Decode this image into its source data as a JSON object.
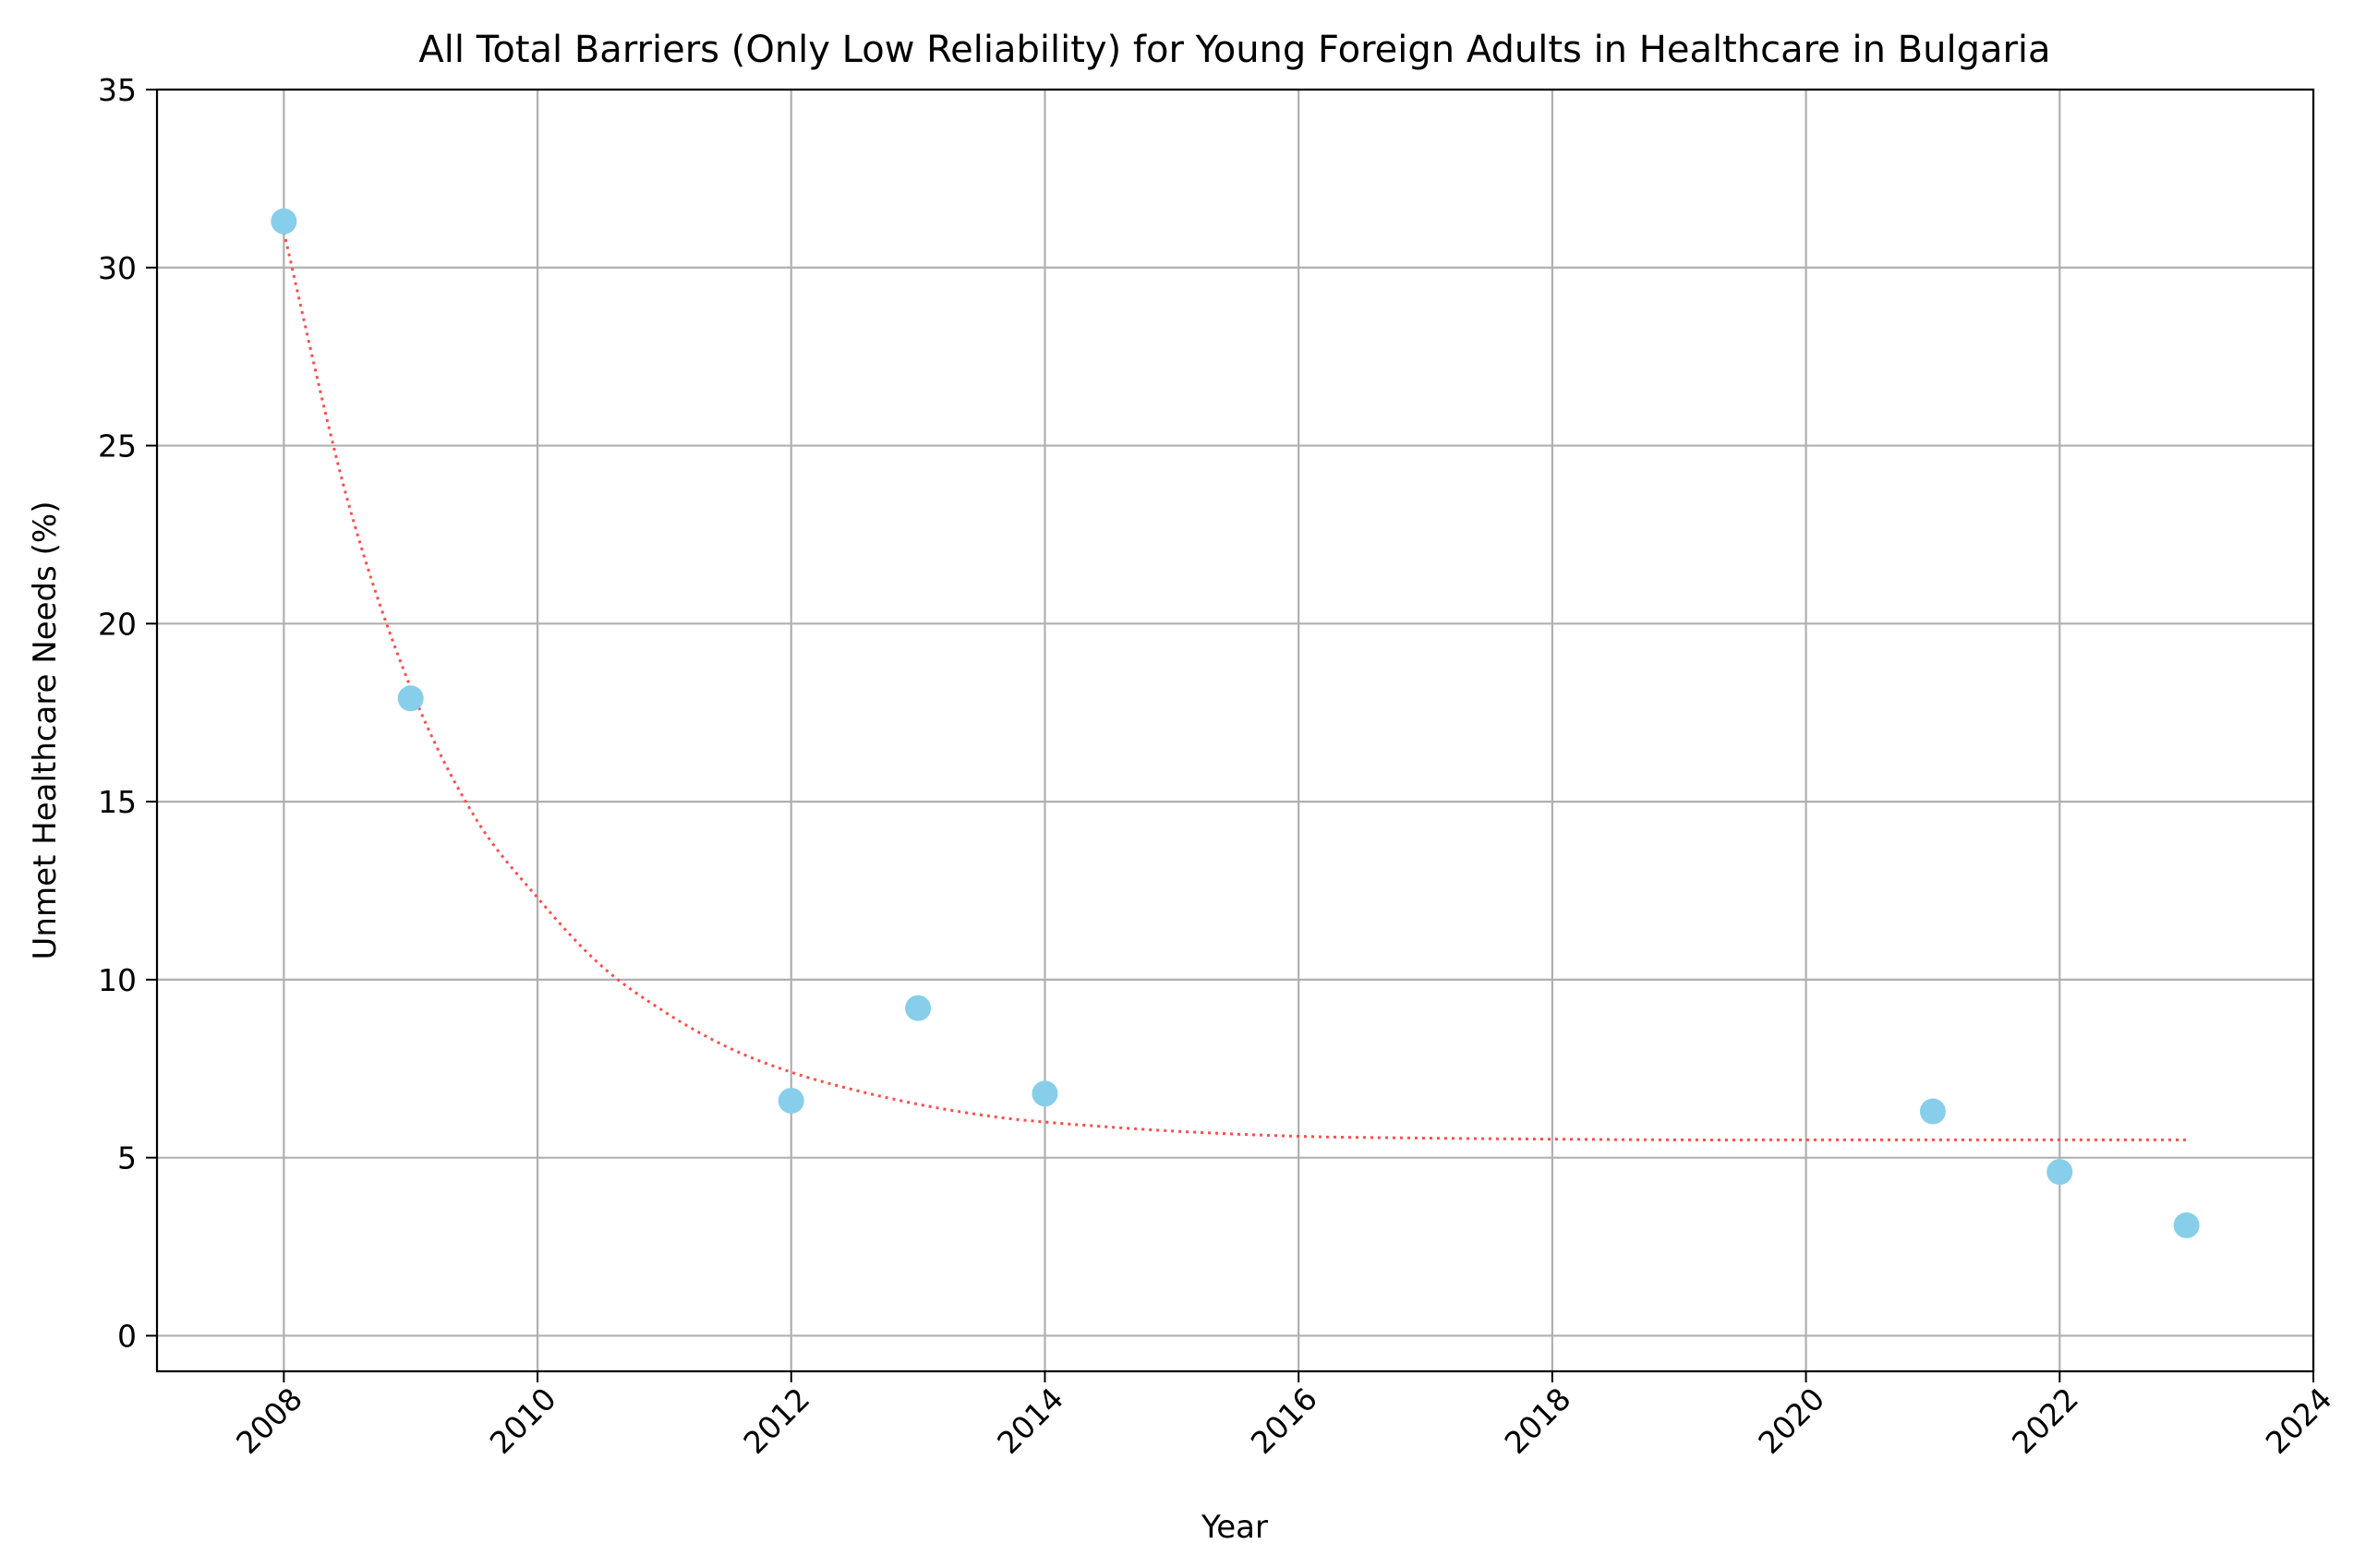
{
  "chart_data": {
    "type": "scatter",
    "title": "All Total Barriers (Only Low Reliability) for Young Foreign Adults in Healthcare in Bulgaria",
    "xlabel": "Year",
    "ylabel": "Unmet Healthcare Needs (%)",
    "xlim": [
      2007,
      2024
    ],
    "ylim": [
      -1,
      35
    ],
    "x_ticks": [
      2008,
      2010,
      2012,
      2014,
      2016,
      2018,
      2020,
      2022,
      2024
    ],
    "x_tick_labels": [
      "2008",
      "2010",
      "2012",
      "2014",
      "2016",
      "2018",
      "2020",
      "2022",
      "2024"
    ],
    "y_ticks": [
      0,
      5,
      10,
      15,
      20,
      25,
      30,
      35
    ],
    "y_tick_labels": [
      "0",
      "5",
      "10",
      "15",
      "20",
      "25",
      "30",
      "35"
    ],
    "grid": true,
    "points": {
      "x": [
        2008,
        2009,
        2012,
        2013,
        2014,
        2021,
        2022,
        2023
      ],
      "y": [
        31.3,
        17.9,
        6.6,
        9.2,
        6.8,
        6.3,
        4.6,
        3.1
      ],
      "color": "#87ceeb"
    },
    "trend_line": {
      "style": "dotted",
      "color": "#ff4d4d",
      "x": [
        2008,
        2008.5,
        2009,
        2009.5,
        2010,
        2010.5,
        2011,
        2011.5,
        2012,
        2012.5,
        2013,
        2013.5,
        2014,
        2015,
        2016,
        2017,
        2018,
        2019,
        2020,
        2021,
        2022,
        2023
      ],
      "y": [
        31.0,
        23.5,
        18.2,
        14.6,
        12.3,
        10.4,
        9.1,
        8.1,
        7.4,
        6.9,
        6.5,
        6.2,
        6.0,
        5.75,
        5.6,
        5.55,
        5.52,
        5.5,
        5.5,
        5.5,
        5.5,
        5.5
      ]
    }
  }
}
